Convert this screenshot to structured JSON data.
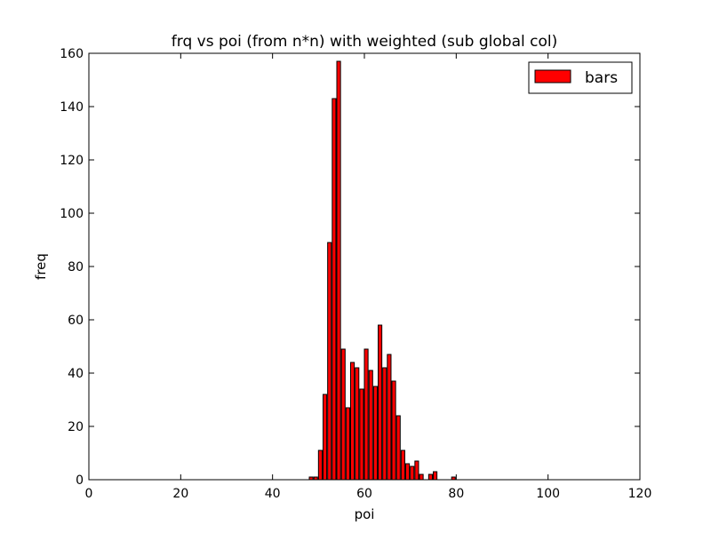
{
  "chart_data": {
    "type": "bar",
    "title": "frq vs poi (from n*n) with weighted (sub global col)",
    "xlabel": "poi",
    "ylabel": "freq",
    "xlim": [
      0,
      120
    ],
    "ylim": [
      0,
      160
    ],
    "xticks": [
      0,
      20,
      40,
      60,
      80,
      100,
      120
    ],
    "yticks": [
      0,
      20,
      40,
      60,
      80,
      100,
      120,
      140,
      160
    ],
    "grid": false,
    "legend": {
      "position": "top-right",
      "entries": [
        "bars"
      ]
    },
    "bar_color": "#ff0000",
    "bar_width": 0.8,
    "series": [
      {
        "name": "bars",
        "x": [
          48,
          49,
          50,
          51,
          52,
          53,
          54,
          55,
          56,
          57,
          58,
          59,
          60,
          61,
          62,
          63,
          64,
          65,
          66,
          67,
          68,
          69,
          70,
          71,
          72,
          73,
          74,
          75,
          76,
          77,
          78,
          79
        ],
        "values": [
          1,
          1,
          11,
          32,
          89,
          143,
          157,
          49,
          27,
          44,
          42,
          34,
          49,
          41,
          35,
          58,
          42,
          47,
          37,
          24,
          11,
          6,
          5,
          7,
          2,
          0,
          2,
          3,
          0,
          0,
          0,
          1
        ]
      }
    ]
  }
}
